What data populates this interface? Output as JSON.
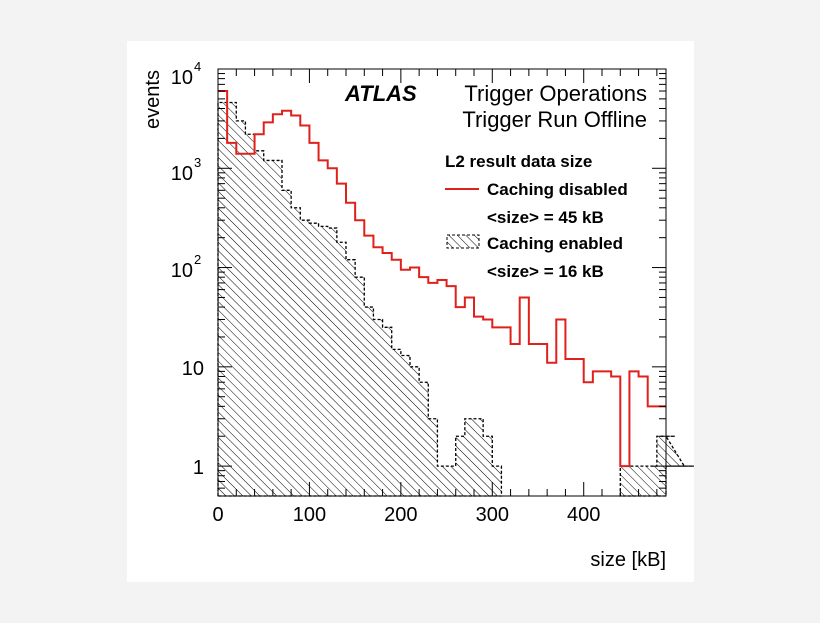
{
  "chart_data": {
    "type": "histogram",
    "title": "",
    "xlabel": "size [kB]",
    "ylabel": "events",
    "xlim": [
      0,
      490
    ],
    "ylim": [
      0.5,
      10000
    ],
    "yscale": "log",
    "grid": false,
    "bin_width": 10,
    "x_ticks": [
      "0",
      "100",
      "200",
      "300",
      "400"
    ],
    "x_tick_values": [
      0,
      100,
      200,
      300,
      400
    ],
    "y_ticks": [
      "1",
      "10",
      "10²",
      "10³",
      "10⁴"
    ],
    "y_tick_values": [
      1,
      10,
      100,
      1000,
      10000
    ],
    "annotation": {
      "experiment": "ATLAS",
      "line1": "Trigger Operations",
      "line2": "Trigger Run Offline"
    },
    "legend": {
      "placement": "top-right",
      "header": "L2 result data size"
    },
    "series": [
      {
        "name": "Caching disabled",
        "stat": "<size> = 45 kB",
        "style": "line",
        "color": "#e0201b",
        "bin_edges_start": 0,
        "values": [
          6000,
          1800,
          1400,
          1400,
          2200,
          2900,
          3500,
          3800,
          3400,
          2700,
          1800,
          1200,
          1000,
          700,
          450,
          300,
          210,
          160,
          140,
          120,
          95,
          100,
          80,
          70,
          75,
          65,
          40,
          50,
          32,
          30,
          25,
          25,
          17,
          50,
          17,
          17,
          11,
          30,
          12,
          12,
          7,
          9,
          9,
          8,
          1,
          9,
          8,
          4,
          4,
          3,
          4,
          3,
          4,
          3,
          3,
          3,
          4,
          3,
          3,
          5,
          3,
          3,
          4,
          3,
          3,
          4
        ]
      },
      {
        "name": "Caching enabled",
        "stat": "<size> = 16 kB",
        "style": "hatched",
        "color": "#000000",
        "bin_edges_start": 0,
        "values": [
          4600,
          4600,
          3000,
          2200,
          1500,
          1200,
          1200,
          600,
          400,
          300,
          280,
          260,
          250,
          180,
          120,
          80,
          40,
          30,
          25,
          15,
          13,
          10,
          7,
          3,
          1,
          1,
          2,
          3,
          3,
          2,
          1,
          0,
          0,
          0,
          0,
          0,
          0,
          0,
          0,
          0,
          0,
          0,
          0,
          0,
          1,
          1,
          1,
          1,
          2,
          2,
          2,
          1,
          1,
          1
        ]
      }
    ]
  }
}
